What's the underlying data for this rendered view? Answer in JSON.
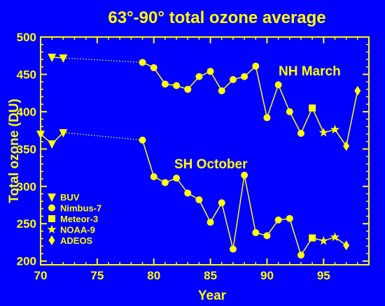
{
  "chart_data": {
    "type": "line",
    "title": "63°-90° total ozone average",
    "xlabel": "Year",
    "ylabel": "Total ozone (DU)",
    "xlim": [
      70,
      99
    ],
    "ylim": [
      195,
      500
    ],
    "xticks": [
      70,
      75,
      80,
      85,
      90,
      95
    ],
    "yticks": [
      200,
      250,
      300,
      350,
      400,
      450,
      500
    ],
    "grid": false,
    "colors": {
      "background": "#0000ff",
      "foreground": "#ffff00"
    },
    "annotations": [
      {
        "text": "NH March",
        "series": "NH March"
      },
      {
        "text": "SH October",
        "series": "SH October"
      }
    ],
    "legend": {
      "placement": "bottom-left",
      "entries": [
        {
          "label": "BUV",
          "marker": "triangle-down"
        },
        {
          "label": "Nimbus-7",
          "marker": "circle"
        },
        {
          "label": "Meteor-3",
          "marker": "square"
        },
        {
          "label": "NOAA-9",
          "marker": "star"
        },
        {
          "label": "ADEOS",
          "marker": "diamond"
        }
      ]
    },
    "series": [
      {
        "name": "NH March",
        "points": [
          {
            "x": 71,
            "y": 473,
            "marker": "triangle-down"
          },
          {
            "x": 72,
            "y": 472,
            "marker": "triangle-down"
          },
          {
            "x": 79,
            "y": 466,
            "marker": "circle"
          },
          {
            "x": 80,
            "y": 459,
            "marker": "circle"
          },
          {
            "x": 81,
            "y": 437,
            "marker": "circle"
          },
          {
            "x": 82,
            "y": 435,
            "marker": "circle"
          },
          {
            "x": 83,
            "y": 430,
            "marker": "circle"
          },
          {
            "x": 84,
            "y": 447,
            "marker": "circle"
          },
          {
            "x": 85,
            "y": 454,
            "marker": "circle"
          },
          {
            "x": 86,
            "y": 428,
            "marker": "circle"
          },
          {
            "x": 87,
            "y": 443,
            "marker": "circle"
          },
          {
            "x": 88,
            "y": 447,
            "marker": "circle"
          },
          {
            "x": 89,
            "y": 461,
            "marker": "circle"
          },
          {
            "x": 90,
            "y": 392,
            "marker": "circle"
          },
          {
            "x": 91,
            "y": 436,
            "marker": "circle"
          },
          {
            "x": 92,
            "y": 400,
            "marker": "circle"
          },
          {
            "x": 93,
            "y": 371,
            "marker": "circle"
          },
          {
            "x": 94,
            "y": 405,
            "marker": "square"
          },
          {
            "x": 95,
            "y": 372,
            "marker": "star"
          },
          {
            "x": 96,
            "y": 376,
            "marker": "star"
          },
          {
            "x": 97,
            "y": 354,
            "marker": "diamond"
          },
          {
            "x": 98,
            "y": 428,
            "marker": "diamond"
          }
        ]
      },
      {
        "name": "SH October",
        "points": [
          {
            "x": 70,
            "y": 370,
            "marker": "triangle-down"
          },
          {
            "x": 71,
            "y": 357,
            "marker": "triangle-down"
          },
          {
            "x": 72,
            "y": 372,
            "marker": "triangle-down"
          },
          {
            "x": 79,
            "y": 362,
            "marker": "circle"
          },
          {
            "x": 80,
            "y": 313,
            "marker": "circle"
          },
          {
            "x": 81,
            "y": 305,
            "marker": "circle"
          },
          {
            "x": 82,
            "y": 311,
            "marker": "circle"
          },
          {
            "x": 83,
            "y": 291,
            "marker": "circle"
          },
          {
            "x": 84,
            "y": 282,
            "marker": "circle"
          },
          {
            "x": 85,
            "y": 252,
            "marker": "circle"
          },
          {
            "x": 86,
            "y": 278,
            "marker": "circle"
          },
          {
            "x": 87,
            "y": 216,
            "marker": "circle"
          },
          {
            "x": 88,
            "y": 315,
            "marker": "circle"
          },
          {
            "x": 89,
            "y": 238,
            "marker": "circle"
          },
          {
            "x": 90,
            "y": 234,
            "marker": "circle"
          },
          {
            "x": 91,
            "y": 255,
            "marker": "circle"
          },
          {
            "x": 92,
            "y": 257,
            "marker": "circle"
          },
          {
            "x": 93,
            "y": 208,
            "marker": "circle"
          },
          {
            "x": 94,
            "y": 231,
            "marker": "square"
          },
          {
            "x": 95,
            "y": 227,
            "marker": "star"
          },
          {
            "x": 96,
            "y": 232,
            "marker": "star"
          },
          {
            "x": 97,
            "y": 221,
            "marker": "diamond"
          }
        ]
      }
    ]
  }
}
